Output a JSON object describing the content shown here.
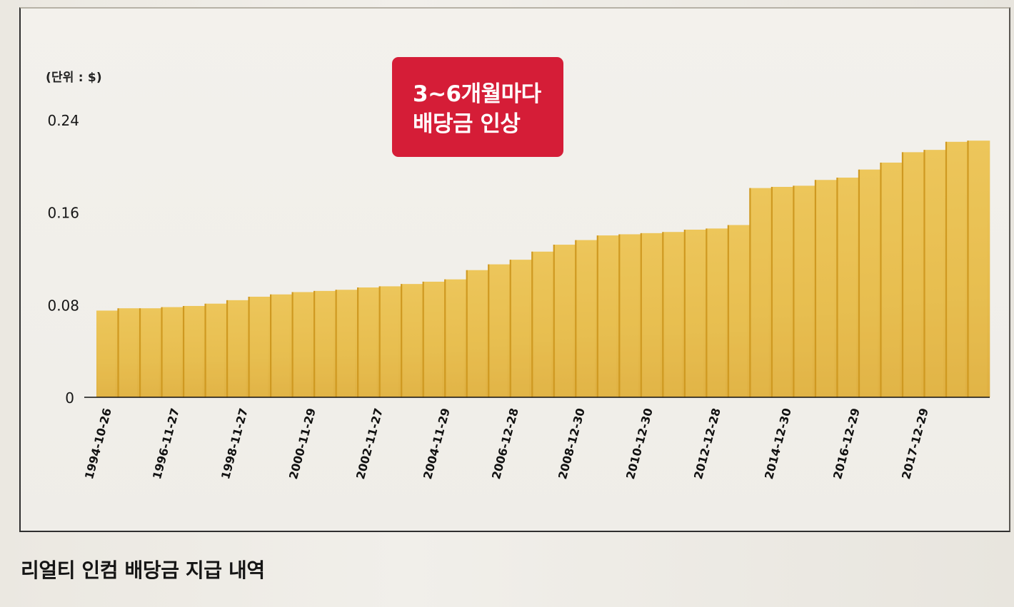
{
  "unit_label": "(단위 : $)",
  "callout": {
    "line1": "3~6개월마다",
    "line2": "배당금 인상"
  },
  "caption": "리얼티 인컴 배당금 지급 내역",
  "colors": {
    "bar_fill": "#e5ba47",
    "bar_highlight": "#edc85f",
    "bar_divider": "#cf9921",
    "callout_fill": "#d51d37",
    "axis": "#111111"
  },
  "chart_data": {
    "type": "bar",
    "ylim": [
      0,
      0.24
    ],
    "yticks": [
      0,
      0.08,
      0.16,
      0.24
    ],
    "ytick_labels": [
      "0",
      "0.08",
      "0.16",
      "0.24"
    ],
    "xtick_labels": [
      "1994-10-26",
      "1996-11-27",
      "1998-11-27",
      "2000-11-29",
      "2002-11-27",
      "2004-11-29",
      "2006-12-28",
      "2008-12-30",
      "2010-12-30",
      "2012-12-28",
      "2014-12-30",
      "2016-12-29",
      "2017-12-29"
    ],
    "values": [
      0.075,
      0.077,
      0.077,
      0.078,
      0.079,
      0.081,
      0.084,
      0.087,
      0.089,
      0.091,
      0.092,
      0.093,
      0.095,
      0.096,
      0.098,
      0.1,
      0.102,
      0.11,
      0.115,
      0.119,
      0.126,
      0.132,
      0.136,
      0.14,
      0.141,
      0.142,
      0.143,
      0.145,
      0.146,
      0.149,
      0.181,
      0.182,
      0.183,
      0.188,
      0.19,
      0.197,
      0.203,
      0.212,
      0.214,
      0.221,
      0.222
    ],
    "grid": false,
    "legend": "none"
  }
}
